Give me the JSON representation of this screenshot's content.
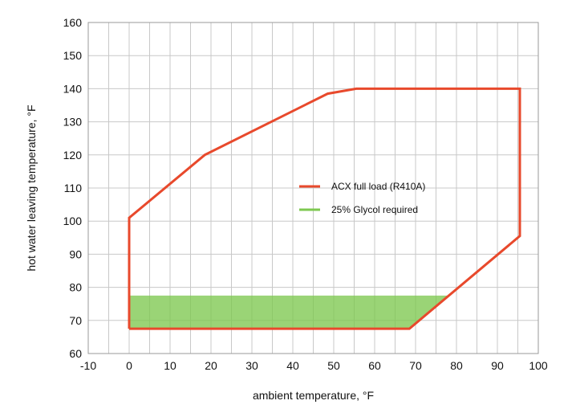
{
  "chart_data": {
    "type": "area",
    "xlabel": "ambient temperature, °F",
    "ylabel": "hot water leaving temperature, °F",
    "xlim": [
      -10,
      100
    ],
    "ylim": [
      60,
      160
    ],
    "x_ticks": [
      -10,
      0,
      10,
      20,
      30,
      40,
      50,
      60,
      70,
      80,
      90,
      100
    ],
    "y_ticks": [
      60,
      70,
      80,
      90,
      100,
      110,
      120,
      130,
      140,
      150,
      160
    ],
    "x_minor_step": 5,
    "grid": true,
    "legend_position": "center-right",
    "series": [
      {
        "name": "ACX full load (R410A)",
        "kind": "outline",
        "color": "#e8492c",
        "points": [
          [
            0,
            67.5
          ],
          [
            0,
            101
          ],
          [
            18.5,
            120
          ],
          [
            48.5,
            138.5
          ],
          [
            55.5,
            140
          ],
          [
            95.5,
            140
          ],
          [
            95.5,
            95.5
          ],
          [
            68.5,
            67.5
          ],
          [
            0,
            67.5
          ]
        ]
      },
      {
        "name": "25% Glycol required",
        "kind": "filled",
        "color": "#7ec850",
        "points": [
          [
            0,
            67.5
          ],
          [
            0,
            77.5
          ],
          [
            78,
            77.5
          ],
          [
            68.5,
            67.5
          ],
          [
            0,
            67.5
          ]
        ]
      }
    ]
  }
}
